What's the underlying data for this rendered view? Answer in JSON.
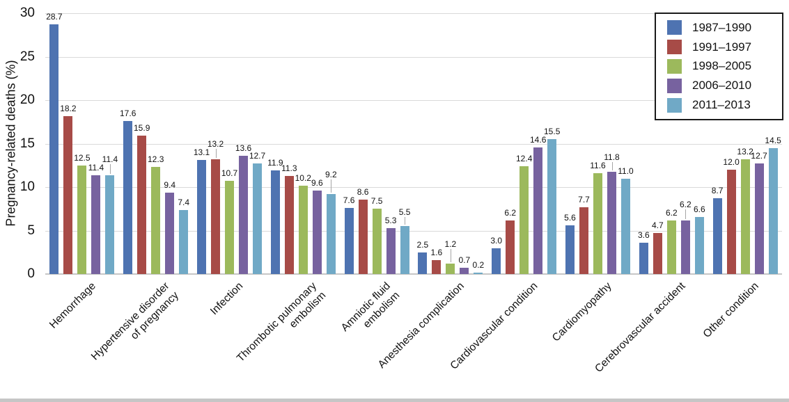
{
  "chart_data": {
    "type": "bar",
    "title": "",
    "ylabel": "Pregnancy-related deaths (%)",
    "xlabel": "",
    "ylim": [
      0,
      30
    ],
    "yticks": [
      0,
      5,
      10,
      15,
      20,
      25,
      30
    ],
    "grid": "horizontal",
    "gridline_color": "#d9d9d9",
    "legend_position": "top-right",
    "value_labels": "one-decimal, above bars, leader lines when crowded",
    "categories": [
      "Hemorrhage",
      "Hypertensive disorder\nof pregnancy",
      "Infection",
      "Thrombotic pulmonary\nembolism",
      "Amniotic fluid\nembolism",
      "Anesthesia complication",
      "Cardiovascular condition",
      "Cardiomyopathy",
      "Cerebrovascular accident",
      "Other condition"
    ],
    "series": [
      {
        "name": "1987–1990",
        "color": "#4E73B1",
        "values": [
          28.7,
          17.6,
          13.1,
          11.9,
          7.6,
          2.5,
          3.0,
          5.6,
          3.6,
          8.7
        ]
      },
      {
        "name": "1991–1997",
        "color": "#A74B47",
        "values": [
          18.2,
          15.9,
          13.2,
          11.3,
          8.6,
          1.6,
          6.2,
          7.7,
          4.7,
          12.0
        ]
      },
      {
        "name": "1998–2005",
        "color": "#9CB95C",
        "values": [
          12.5,
          12.3,
          10.7,
          10.2,
          7.5,
          1.2,
          12.4,
          11.6,
          6.2,
          13.2
        ]
      },
      {
        "name": "2006–2010",
        "color": "#77629F",
        "values": [
          11.4,
          9.4,
          13.6,
          9.6,
          5.3,
          0.7,
          14.6,
          11.8,
          6.2,
          12.7
        ]
      },
      {
        "name": "2011–2013",
        "color": "#70A9C6",
        "values": [
          11.4,
          7.4,
          12.7,
          9.2,
          5.5,
          0.2,
          15.5,
          11.0,
          6.6,
          14.5
        ]
      }
    ]
  }
}
